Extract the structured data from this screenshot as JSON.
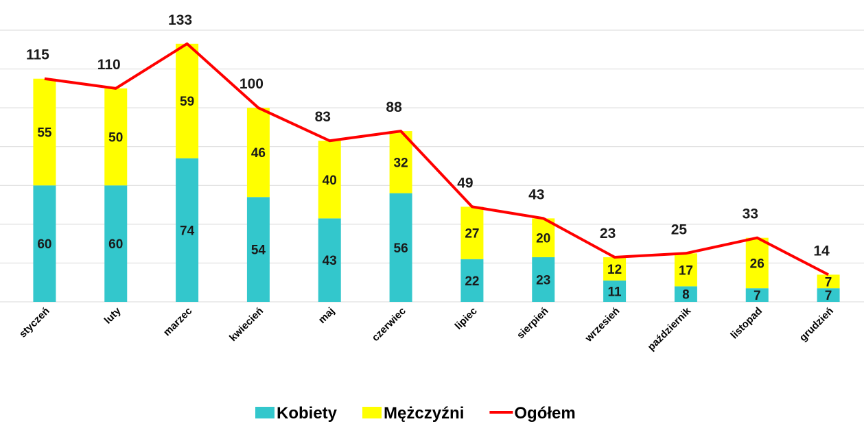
{
  "chart_data": {
    "type": "bar",
    "stacked": true,
    "categories": [
      "styczeń",
      "luty",
      "marzec",
      "kwiecień",
      "maj",
      "czerwiec",
      "lipiec",
      "sierpień",
      "wrzesień",
      "październik",
      "listopad",
      "grudzień"
    ],
    "series": [
      {
        "name": "Kobiety",
        "color": "#33c7cc",
        "values": [
          60,
          60,
          74,
          54,
          43,
          56,
          22,
          23,
          11,
          8,
          7,
          7
        ]
      },
      {
        "name": "Mężczyźni",
        "color": "#ffff00",
        "values": [
          55,
          50,
          59,
          46,
          40,
          32,
          27,
          20,
          12,
          17,
          26,
          7
        ]
      },
      {
        "name": "Ogółem",
        "color": "#ff0000",
        "type": "line",
        "values": [
          115,
          110,
          133,
          100,
          83,
          88,
          49,
          43,
          23,
          25,
          33,
          14
        ]
      }
    ],
    "ylim": [
      0,
      140
    ],
    "yticks": [
      0,
      20,
      40,
      60,
      80,
      100,
      120,
      140
    ],
    "grid": true,
    "legend": "bottom"
  }
}
